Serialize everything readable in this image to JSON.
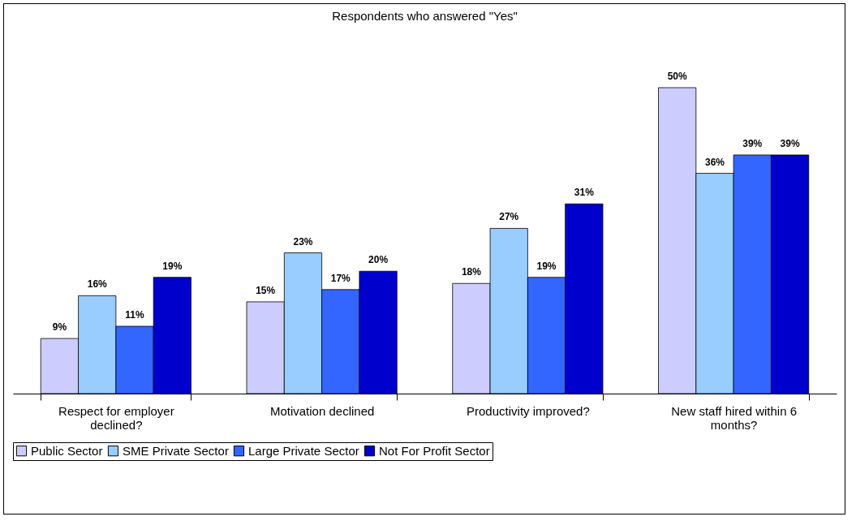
{
  "chart_data": {
    "type": "bar",
    "title": "Respondents who answered \"Yes\"",
    "categories": [
      "Respect for employer declined?",
      "Motivation declined",
      "Productivity improved?",
      "New staff hired within 6 months?"
    ],
    "series": [
      {
        "name": "Public Sector",
        "color": "#ccccff",
        "values": [
          9,
          15,
          18,
          50
        ],
        "value_labels": [
          "9%",
          "15%",
          "18%",
          "50%"
        ]
      },
      {
        "name": "SME Private Sector",
        "color": "#99ccff",
        "values": [
          16,
          23,
          27,
          36
        ],
        "value_labels": [
          "16%",
          "23%",
          "27%",
          "36%"
        ]
      },
      {
        "name": "Large Private Sector",
        "color": "#3366ff",
        "values": [
          11,
          17,
          19,
          39
        ],
        "value_labels": [
          "11%",
          "17%",
          "19%",
          "39%"
        ]
      },
      {
        "name": "Not For Profit Sector",
        "color": "#0000cc",
        "values": [
          19,
          20,
          31,
          39
        ],
        "value_labels": [
          "19%",
          "20%",
          "31%",
          "39%"
        ]
      }
    ],
    "legend": "bottom"
  }
}
